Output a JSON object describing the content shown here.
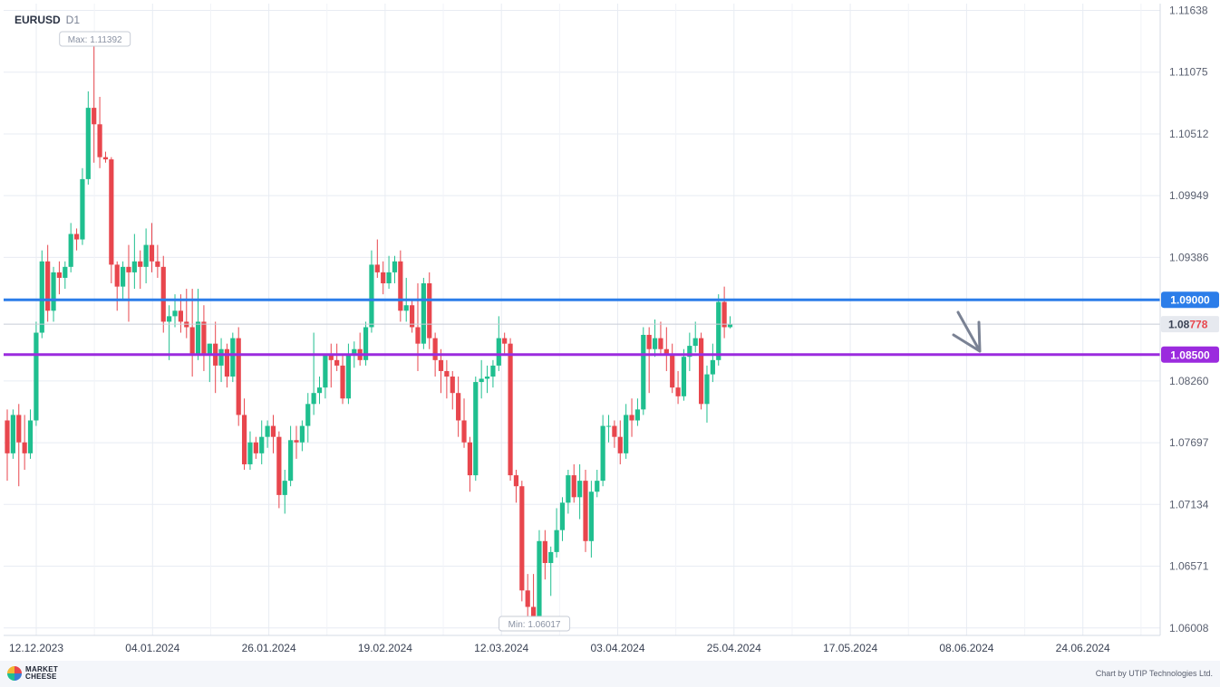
{
  "header": {
    "symbol": "EURUSD",
    "timeframe": "D1"
  },
  "footer": {
    "logo_text": "MARKET CHEESE",
    "credit": "Chart by UTIP Technologies Ltd."
  },
  "colors": {
    "bull": "#1fbf8f",
    "bear": "#e8464d",
    "resistance": "#2b7de9",
    "support": "#9b2bde",
    "grid": "#e8ecf3",
    "arrow": "#7a8294"
  },
  "chart_data": {
    "type": "candlestick",
    "symbol": "EURUSD",
    "timeframe": "D1",
    "x_ticks": [
      "12.12.2023",
      "04.01.2024",
      "26.01.2024",
      "19.02.2024",
      "12.03.2024",
      "03.04.2024",
      "25.04.2024",
      "17.05.2024",
      "08.06.2024",
      "24.06.2024"
    ],
    "y_ticks": [
      "1.11638",
      "1.11075",
      "1.10512",
      "1.09949",
      "1.09386",
      "1.08260",
      "1.07697",
      "1.07134",
      "1.06571",
      "1.06008"
    ],
    "ylim": [
      1.0594,
      1.117
    ],
    "max_label": "Max: 1.11392",
    "min_label": "Min: 1.06017",
    "levels": [
      {
        "name": "resistance",
        "value": 1.09,
        "label": "1.09000"
      },
      {
        "name": "support",
        "value": 1.085,
        "label": "1.08500"
      }
    ],
    "current_price": {
      "value": 1.08778,
      "label_prefix": "1.08",
      "label_suffix": "778"
    },
    "candles": [
      [
        1.079,
        1.08,
        1.0735,
        1.076
      ],
      [
        1.076,
        1.08,
        1.0755,
        1.0795
      ],
      [
        1.0795,
        1.0805,
        1.073,
        1.077
      ],
      [
        1.077,
        1.0795,
        1.0745,
        1.076
      ],
      [
        1.076,
        1.08,
        1.0755,
        1.079
      ],
      [
        1.079,
        1.088,
        1.0785,
        1.087
      ],
      [
        1.087,
        1.0945,
        1.0865,
        1.0935
      ],
      [
        1.0935,
        1.095,
        1.088,
        1.089
      ],
      [
        1.089,
        1.093,
        1.088,
        1.0925
      ],
      [
        1.0925,
        1.0935,
        1.0905,
        1.092
      ],
      [
        1.092,
        1.0935,
        1.091,
        1.093
      ],
      [
        1.093,
        1.097,
        1.0925,
        1.096
      ],
      [
        1.096,
        1.0965,
        1.0945,
        1.0955
      ],
      [
        1.0955,
        1.102,
        1.095,
        1.101
      ],
      [
        1.101,
        1.109,
        1.1005,
        1.1075
      ],
      [
        1.1075,
        1.1139,
        1.1025,
        1.106
      ],
      [
        1.106,
        1.1085,
        1.102,
        1.103
      ],
      [
        1.103,
        1.1035,
        1.1025,
        1.1028
      ],
      [
        1.1028,
        1.103,
        1.0915,
        1.0932
      ],
      [
        1.0932,
        1.0935,
        1.089,
        1.0912
      ],
      [
        1.0912,
        1.0935,
        1.09,
        1.093
      ],
      [
        1.093,
        1.095,
        1.088,
        1.0925
      ],
      [
        1.0925,
        1.096,
        1.091,
        1.0935
      ],
      [
        1.0935,
        1.0945,
        1.091,
        1.093
      ],
      [
        1.093,
        1.0965,
        1.0915,
        1.095
      ],
      [
        1.095,
        1.097,
        1.0925,
        1.0935
      ],
      [
        1.0935,
        1.095,
        1.092,
        1.093
      ],
      [
        1.093,
        1.094,
        1.087,
        1.088
      ],
      [
        1.088,
        1.0895,
        1.0845,
        1.0885
      ],
      [
        1.0885,
        1.0905,
        1.0875,
        1.089
      ],
      [
        1.089,
        1.0905,
        1.087,
        1.088
      ],
      [
        1.088,
        1.091,
        1.0865,
        1.0875
      ],
      [
        1.0875,
        1.091,
        1.083,
        1.085
      ],
      [
        1.085,
        1.091,
        1.0845,
        1.088
      ],
      [
        1.088,
        1.0895,
        1.0835,
        1.085
      ],
      [
        1.085,
        1.086,
        1.0825,
        1.086
      ],
      [
        1.086,
        1.088,
        1.0815,
        1.084
      ],
      [
        1.084,
        1.0865,
        1.0825,
        1.0855
      ],
      [
        1.0855,
        1.086,
        1.082,
        1.083
      ],
      [
        1.083,
        1.087,
        1.0825,
        1.0865
      ],
      [
        1.0865,
        1.0875,
        1.0785,
        1.0795
      ],
      [
        1.0795,
        1.081,
        1.0745,
        1.075
      ],
      [
        1.075,
        1.078,
        1.0745,
        1.077
      ],
      [
        1.077,
        1.0775,
        1.0755,
        1.076
      ],
      [
        1.076,
        1.079,
        1.075,
        1.0775
      ],
      [
        1.0775,
        1.079,
        1.0765,
        1.0785
      ],
      [
        1.0785,
        1.0795,
        1.076,
        1.0775
      ],
      [
        1.0775,
        1.078,
        1.071,
        1.0722
      ],
      [
        1.0722,
        1.0745,
        1.0705,
        1.0735
      ],
      [
        1.0735,
        1.0785,
        1.073,
        1.0772
      ],
      [
        1.0772,
        1.0785,
        1.0755,
        1.077
      ],
      [
        1.077,
        1.079,
        1.0762,
        1.0785
      ],
      [
        1.0785,
        1.0815,
        1.077,
        1.0805
      ],
      [
        1.0805,
        1.087,
        1.0795,
        1.0815
      ],
      [
        1.0815,
        1.083,
        1.0805,
        1.082
      ],
      [
        1.082,
        1.0845,
        1.081,
        1.085
      ],
      [
        1.085,
        1.086,
        1.082,
        1.0845
      ],
      [
        1.0845,
        1.086,
        1.0835,
        1.084
      ],
      [
        1.084,
        1.085,
        1.0805,
        1.081
      ],
      [
        1.081,
        1.086,
        1.0805,
        1.085
      ],
      [
        1.085,
        1.0862,
        1.0838,
        1.0855
      ],
      [
        1.0855,
        1.087,
        1.084,
        1.0845
      ],
      [
        1.0845,
        1.088,
        1.084,
        1.0875
      ],
      [
        1.0875,
        1.0945,
        1.087,
        1.0932
      ],
      [
        1.0932,
        1.0955,
        1.092,
        1.0925
      ],
      [
        1.0925,
        1.0935,
        1.0905,
        1.0915
      ],
      [
        1.0915,
        1.094,
        1.091,
        1.0925
      ],
      [
        1.0925,
        1.094,
        1.0915,
        1.0935
      ],
      [
        1.0935,
        1.0945,
        1.088,
        1.089
      ],
      [
        1.089,
        1.092,
        1.088,
        1.0895
      ],
      [
        1.0895,
        1.09,
        1.087,
        1.0875
      ],
      [
        1.0875,
        1.0915,
        1.0835,
        1.086
      ],
      [
        1.086,
        1.092,
        1.0855,
        1.0915
      ],
      [
        1.0915,
        1.0925,
        1.0855,
        1.0865
      ],
      [
        1.0865,
        1.087,
        1.083,
        1.0845
      ],
      [
        1.0845,
        1.0855,
        1.0815,
        1.0835
      ],
      [
        1.0835,
        1.0845,
        1.081,
        1.083
      ],
      [
        1.083,
        1.0835,
        1.08,
        1.0815
      ],
      [
        1.0815,
        1.083,
        1.0775,
        1.079
      ],
      [
        1.079,
        1.081,
        1.0765,
        1.077
      ],
      [
        1.077,
        1.0775,
        1.0725,
        1.074
      ],
      [
        1.074,
        1.083,
        1.0735,
        1.0825
      ],
      [
        1.0825,
        1.0845,
        1.081,
        1.0828
      ],
      [
        1.0828,
        1.084,
        1.0815,
        1.083
      ],
      [
        1.083,
        1.0845,
        1.082,
        1.084
      ],
      [
        1.084,
        1.0885,
        1.0835,
        1.0865
      ],
      [
        1.0865,
        1.087,
        1.085,
        1.086
      ],
      [
        1.086,
        1.0865,
        1.0735,
        1.074
      ],
      [
        1.074,
        1.0745,
        1.0715,
        1.073
      ],
      [
        1.073,
        1.0735,
        1.0625,
        1.0635
      ],
      [
        1.0635,
        1.065,
        1.0605,
        1.062
      ],
      [
        1.062,
        1.065,
        1.0602,
        1.061
      ],
      [
        1.061,
        1.069,
        1.0605,
        1.068
      ],
      [
        1.068,
        1.069,
        1.0645,
        1.066
      ],
      [
        1.066,
        1.0675,
        1.063,
        1.067
      ],
      [
        1.067,
        1.071,
        1.0665,
        1.069
      ],
      [
        1.069,
        1.072,
        1.068,
        1.0715
      ],
      [
        1.0715,
        1.0745,
        1.0705,
        1.074
      ],
      [
        1.074,
        1.075,
        1.0715,
        1.072
      ],
      [
        1.072,
        1.075,
        1.07,
        1.0735
      ],
      [
        1.0735,
        1.0745,
        1.067,
        1.068
      ],
      [
        1.068,
        1.0735,
        1.0665,
        1.0725
      ],
      [
        1.0725,
        1.0745,
        1.072,
        1.0735
      ],
      [
        1.0735,
        1.0795,
        1.073,
        1.0785
      ],
      [
        1.0785,
        1.0795,
        1.077,
        1.0785
      ],
      [
        1.0785,
        1.079,
        1.0765,
        1.0775
      ],
      [
        1.0775,
        1.079,
        1.075,
        1.076
      ],
      [
        1.076,
        1.0805,
        1.0755,
        1.0795
      ],
      [
        1.0795,
        1.081,
        1.0775,
        1.079
      ],
      [
        1.079,
        1.081,
        1.0785,
        1.08
      ],
      [
        1.08,
        1.0875,
        1.0795,
        1.0868
      ],
      [
        1.0868,
        1.0875,
        1.0815,
        1.0855
      ],
      [
        1.0855,
        1.0882,
        1.0848,
        1.0865
      ],
      [
        1.0865,
        1.088,
        1.085,
        1.0855
      ],
      [
        1.0855,
        1.0875,
        1.0835,
        1.085
      ],
      [
        1.085,
        1.086,
        1.0815,
        1.082
      ],
      [
        1.082,
        1.0835,
        1.0805,
        1.0812
      ],
      [
        1.0812,
        1.0855,
        1.0808,
        1.0848
      ],
      [
        1.0848,
        1.087,
        1.0835,
        1.0858
      ],
      [
        1.0858,
        1.088,
        1.0852,
        1.0865
      ],
      [
        1.0865,
        1.087,
        1.08,
        1.0805
      ],
      [
        1.0805,
        1.084,
        1.0788,
        1.0832
      ],
      [
        1.0832,
        1.086,
        1.0825,
        1.0845
      ],
      [
        1.0845,
        1.0905,
        1.084,
        1.0898
      ],
      [
        1.0898,
        1.0912,
        1.0865,
        1.0875
      ],
      [
        1.0875,
        1.0885,
        1.0874,
        1.0878
      ]
    ]
  }
}
